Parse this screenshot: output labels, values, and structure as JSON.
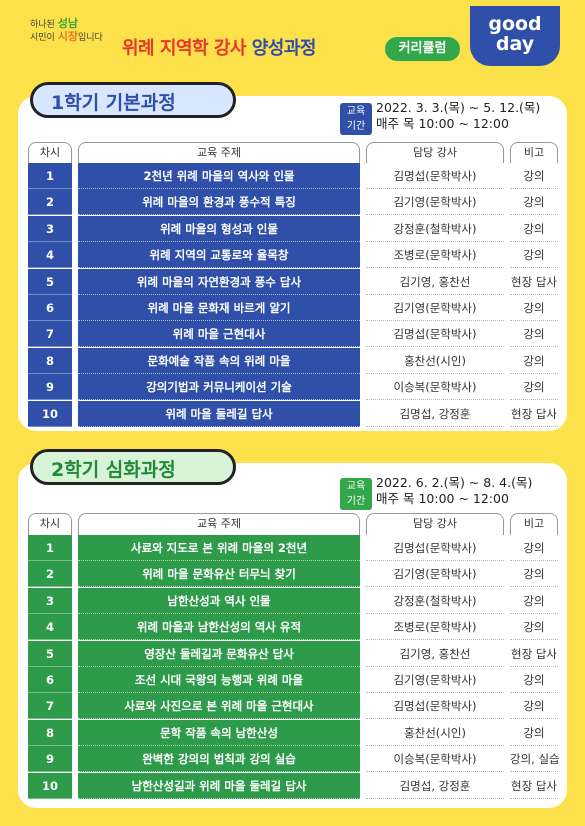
{
  "brand": {
    "line1_a": "하나된",
    "line1_b": "성남",
    "line2_a": "시민이",
    "line2_b": "시장",
    "line2_c": "입니다"
  },
  "header": {
    "title_a": "위례 지역학 강사",
    "title_b": "양성과정",
    "badge": "커리큘럼",
    "logo_line1": "good",
    "logo_line2": "day"
  },
  "columns": {
    "no": "차시",
    "subject": "교육 주제",
    "teacher": "담당 강사",
    "note": "비고"
  },
  "semester1": {
    "title": "1학기 기본과정",
    "period_tag": "교육\n기간",
    "period_line1": "2022. 3. 3.(목) ~ 5. 12.(목)",
    "period_line2": "매주 목 10:00 ~ 12:00",
    "rows": [
      {
        "no": "1",
        "subject": "2천년 위례 마을의 역사와 인물",
        "teacher": "김명섭(문학박사)",
        "note": "강의"
      },
      {
        "no": "2",
        "subject": "위례 마을의 환경과 풍수적 특징",
        "teacher": "김기영(문학박사)",
        "note": "강의"
      },
      {
        "no": "3",
        "subject": "위례 마을의 형성과 인물",
        "teacher": "강정훈(철학박사)",
        "note": "강의"
      },
      {
        "no": "4",
        "subject": "위례 지역의 교통로와 율목창",
        "teacher": "조병로(문학박사)",
        "note": "강의"
      },
      {
        "no": "5",
        "subject": "위례 마을의 자연환경과 풍수 답사",
        "teacher": "김기영, 홍찬선",
        "note": "현장 답사"
      },
      {
        "no": "6",
        "subject": "위례 마을 문화재 바르게 알기",
        "teacher": "김기영(문학박사)",
        "note": "강의"
      },
      {
        "no": "7",
        "subject": "위례 마을 근현대사",
        "teacher": "김명섭(문학박사)",
        "note": "강의"
      },
      {
        "no": "8",
        "subject": "문화예술 작품 속의 위례 마을",
        "teacher": "홍찬선(시인)",
        "note": "강의"
      },
      {
        "no": "9",
        "subject": "강의기법과 커뮤니케이션 기술",
        "teacher": "이승복(문학박사)",
        "note": "강의"
      },
      {
        "no": "10",
        "subject": "위례 마을 둘레길 답사",
        "teacher": "김명섭, 강정훈",
        "note": "현장 답사"
      }
    ]
  },
  "semester2": {
    "title": "2학기 심화과정",
    "period_tag": "교육\n기간",
    "period_line1": "2022. 6. 2.(목) ~ 8. 4.(목)",
    "period_line2": "매주 목 10:00 ~ 12:00",
    "rows": [
      {
        "no": "1",
        "subject": "사료와 지도로 본 위례 마을의 2천년",
        "teacher": "김명섭(문학박사)",
        "note": "강의"
      },
      {
        "no": "2",
        "subject": "위례 마을 문화유산 터무늬 찾기",
        "teacher": "김기영(문학박사)",
        "note": "강의"
      },
      {
        "no": "3",
        "subject": "남한산성과 역사 인물",
        "teacher": "강정훈(철학박사)",
        "note": "강의"
      },
      {
        "no": "4",
        "subject": "위례 마을과 남한산성의 역사 유적",
        "teacher": "조병로(문학박사)",
        "note": "강의"
      },
      {
        "no": "5",
        "subject": "영장산 둘레길과 문화유산 답사",
        "teacher": "김기영, 홍찬선",
        "note": "현장 답사"
      },
      {
        "no": "6",
        "subject": "조선 시대 국왕의 능행과 위례 마을",
        "teacher": "김기영(문학박사)",
        "note": "강의"
      },
      {
        "no": "7",
        "subject": "사료와 사진으로 본 위례 마을 근현대사",
        "teacher": "김명섭(문학박사)",
        "note": "강의"
      },
      {
        "no": "8",
        "subject": "문학 작품 속의 남한산성",
        "teacher": "홍찬선(시인)",
        "note": "강의"
      },
      {
        "no": "9",
        "subject": "완벽한 강의의 법칙과 강의 실습",
        "teacher": "이승복(문학박사)",
        "note": "강의, 실습"
      },
      {
        "no": "10",
        "subject": "남한산성길과 위례 마을 둘레길 답사",
        "teacher": "김명섭, 강정훈",
        "note": "현장 답사"
      }
    ]
  }
}
